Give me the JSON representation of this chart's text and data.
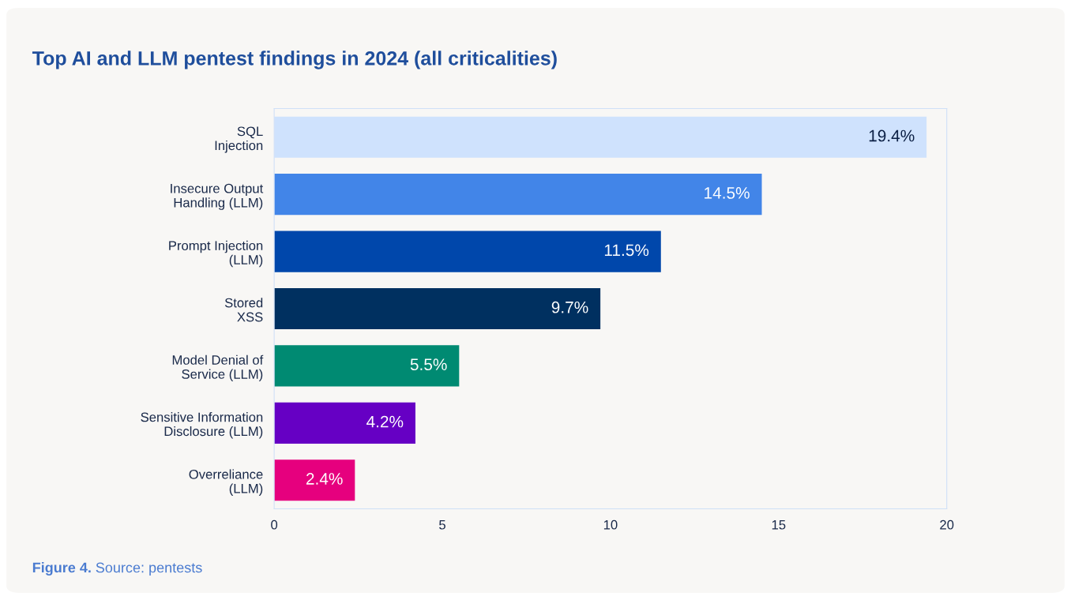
{
  "chart_data": {
    "type": "bar",
    "orientation": "horizontal",
    "title": "Top AI and LLM pentest findings in 2024 (all criticalities)",
    "categories": [
      "SQL\nInjection",
      "Insecure Output\nHandling (LLM)",
      "Prompt Injection\n(LLM)",
      "Stored\nXSS",
      "Model Denial of\nService (LLM)",
      "Sensitive Information\nDisclosure (LLM)",
      "Overreliance\n(LLM)"
    ],
    "values": [
      19.4,
      14.5,
      11.5,
      9.7,
      5.5,
      4.2,
      2.4
    ],
    "colors": [
      "#cfe2fd",
      "#4285e8",
      "#0047ab",
      "#003060",
      "#008a72",
      "#6600c4",
      "#e6007e"
    ],
    "value_labels": [
      "19.4%",
      "14.5%",
      "11.5%",
      "9.7%",
      "5.5%",
      "4.2%",
      "2.4%"
    ],
    "xlim": [
      0,
      20
    ],
    "xticks": [
      0,
      5,
      10,
      15,
      20
    ],
    "grid": false,
    "legend": false,
    "annotations": [
      "Figure 4.",
      "Source: pentests"
    ]
  }
}
